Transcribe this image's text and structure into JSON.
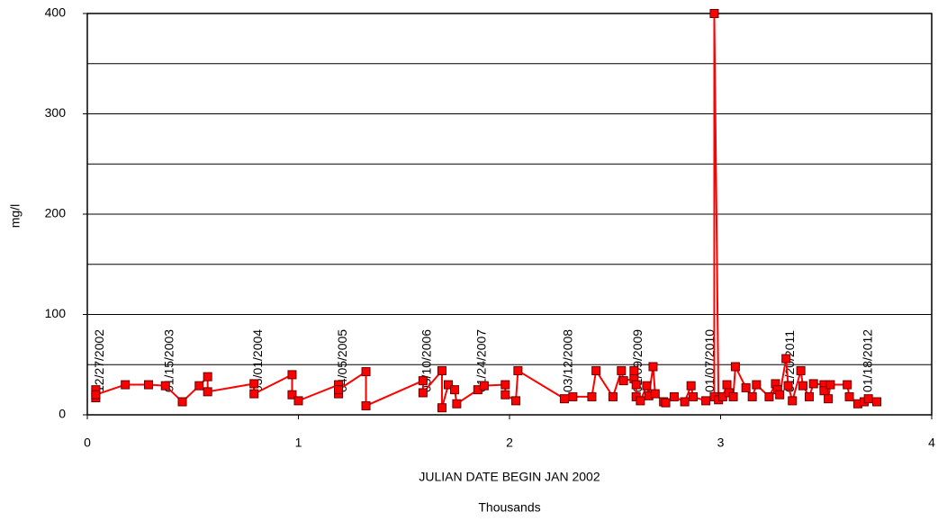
{
  "chart_data": {
    "type": "line",
    "y_label": "mg/l",
    "x_label": "JULIAN DATE BEGIN JAN 2002",
    "x_unit_label": "Thousands",
    "xlim": [
      0,
      4
    ],
    "xticks": [
      0,
      1,
      2,
      3,
      4
    ],
    "ylim": [
      0,
      400
    ],
    "yticks": [
      0,
      100,
      200,
      300,
      400
    ],
    "grid_lines": [
      50,
      100,
      150,
      200,
      250,
      300,
      350,
      400
    ],
    "grid": true,
    "series": [
      {
        "name": "mg/l",
        "color": "#ff0000",
        "x": [
          0.04,
          0.04,
          0.04,
          0.18,
          0.29,
          0.37,
          0.45,
          0.53,
          0.57,
          0.57,
          0.79,
          0.79,
          0.97,
          0.97,
          1.0,
          1.19,
          1.19,
          1.19,
          1.32,
          1.32,
          1.59,
          1.59,
          1.68,
          1.68,
          1.71,
          1.74,
          1.75,
          1.85,
          1.88,
          1.98,
          1.98,
          2.03,
          2.04,
          2.26,
          2.3,
          2.39,
          2.41,
          2.49,
          2.53,
          2.54,
          2.59,
          2.59,
          2.6,
          2.6,
          2.62,
          2.65,
          2.66,
          2.68,
          2.69,
          2.73,
          2.74,
          2.78,
          2.83,
          2.86,
          2.87,
          2.93,
          2.97,
          2.97,
          2.99,
          3.01,
          3.03,
          3.04,
          3.06,
          3.07,
          3.12,
          3.15,
          3.17,
          3.23,
          3.26,
          3.27,
          3.28,
          3.31,
          3.32,
          3.34,
          3.38,
          3.39,
          3.42,
          3.44,
          3.49,
          3.49,
          3.51,
          3.52,
          3.6,
          3.61,
          3.65,
          3.68,
          3.7,
          3.74
        ],
        "values": [
          25,
          17,
          20,
          30,
          30,
          29,
          13,
          29,
          38,
          23,
          31,
          21,
          40,
          20,
          14,
          30,
          21,
          25,
          43,
          9,
          34,
          22,
          44,
          7,
          30,
          25,
          11,
          25,
          29,
          30,
          20,
          14,
          44,
          16,
          18,
          18,
          44,
          18,
          44,
          34,
          36,
          44,
          30,
          18,
          14,
          29,
          19,
          48,
          21,
          13,
          12,
          18,
          13,
          29,
          18,
          14,
          18,
          400,
          15,
          18,
          30,
          22,
          18,
          48,
          27,
          18,
          30,
          18,
          31,
          25,
          20,
          56,
          29,
          14,
          44,
          29,
          18,
          31,
          30,
          24,
          16,
          30,
          30,
          18,
          11,
          13,
          16,
          13
        ]
      }
    ],
    "annotations": [
      {
        "text": "12/27/2002",
        "x": 0.04
      },
      {
        "text": "01/15/2003",
        "x": 0.37
      },
      {
        "text": "03/01/2004",
        "x": 0.79
      },
      {
        "text": "04/05/2005",
        "x": 1.19
      },
      {
        "text": "05/10/2006",
        "x": 1.59
      },
      {
        "text": "01/24/2007",
        "x": 1.85
      },
      {
        "text": "03/12/2008",
        "x": 2.26
      },
      {
        "text": "02/09/2009",
        "x": 2.59
      },
      {
        "text": "01/07/2010",
        "x": 2.93
      },
      {
        "text": "01/20/2011",
        "x": 3.31
      },
      {
        "text": "01/18/2012",
        "x": 3.68
      }
    ]
  }
}
